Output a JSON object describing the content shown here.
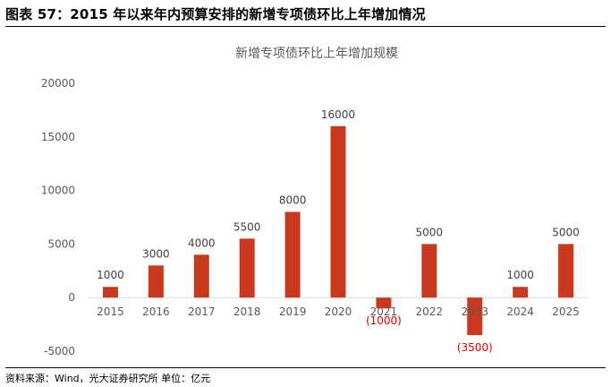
{
  "figure": {
    "title": "图表 57：2015 年以来年内预算安排的新增专项债环比上年增加情况",
    "source": "资料来源：Wind，光大证券研究所 单位：亿元"
  },
  "colors": {
    "bar": "#C8391E",
    "negative_label": "#E00000",
    "axis_text": "#595959",
    "axis_line": "#D9D9D9"
  },
  "chart_data": {
    "type": "bar",
    "title": "新增专项债环比上年增加规模",
    "categories": [
      "2015",
      "2016",
      "2017",
      "2018",
      "2019",
      "2020",
      "2021",
      "2022",
      "2023",
      "2024",
      "2025"
    ],
    "values": [
      1000,
      3000,
      4000,
      5500,
      8000,
      16000,
      -1000,
      5000,
      -3500,
      1000,
      5000
    ],
    "data_labels": [
      "1000",
      "3000",
      "4000",
      "5500",
      "8000",
      "16000",
      "(1000)",
      "5000",
      "(3500)",
      "1000",
      "5000"
    ],
    "yticks": [
      20000,
      15000,
      10000,
      5000,
      0,
      -5000
    ],
    "ylim": [
      -5000,
      20000
    ],
    "xlabel": "",
    "ylabel": "",
    "grid": false,
    "legend": "none"
  }
}
